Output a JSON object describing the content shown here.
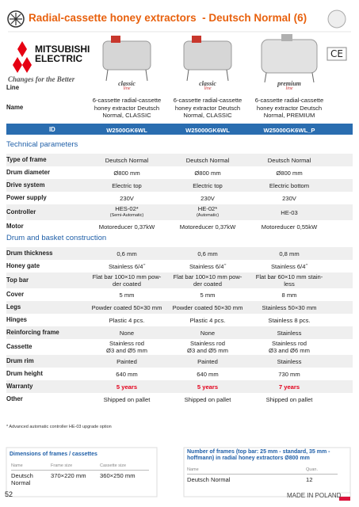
{
  "header": {
    "title": "Radial-cassette honey extractors  - Deutsch Normal (6)"
  },
  "logo": {
    "brand_lines": [
      "MITSUBISHI",
      "ELECTRIC"
    ],
    "slogan": "Changes for the Better"
  },
  "products": {
    "row_labels": {
      "line": "Line",
      "name": "Name"
    },
    "items": [
      {
        "line": [
          "classic",
          "line"
        ],
        "name": "6-cassette radial-cassette honey extractor Deutsch Normal, CLASSIC"
      },
      {
        "line": [
          "classic",
          "line"
        ],
        "name": "6-cassette radial-cassette honey extractor Deutsch Normal, CLASSIC"
      },
      {
        "line": [
          "premium",
          "line"
        ],
        "name": "6-cassette radial-cassette honey extractor Deutsch Normal, PREMIUM"
      }
    ]
  },
  "id_row": {
    "label": "ID",
    "values": [
      "W2500GK6WL",
      "W25000GK6WL",
      "W25000GK6WL_P"
    ]
  },
  "sections": [
    {
      "heading": "Technical parameters",
      "rows": [
        {
          "label": "Type of frame",
          "values": [
            "Deutsch Normal",
            "Deutsch Normal",
            "Deutsch Normal"
          ]
        },
        {
          "label": "Drum diameter",
          "values": [
            "Ø800 mm",
            "Ø800 mm",
            "Ø800 mm"
          ]
        },
        {
          "label": "Drive system",
          "values": [
            "Electric top",
            "Electric top",
            "Electric bottom"
          ]
        },
        {
          "label": "Power supply",
          "values": [
            "230V",
            "230V",
            "230V"
          ]
        },
        {
          "label": "Controller",
          "values": [
            [
              "HES-02*",
              "(Semi-Automatic)"
            ],
            [
              "HE-02*",
              "(Automatic)"
            ],
            "HE-03"
          ]
        },
        {
          "label": "Motor",
          "values": [
            "Motoreducer 0,37kW",
            "Motoreducer 0,37kW",
            "Motoreducer 0,55kW"
          ]
        }
      ]
    },
    {
      "heading": "Drum and basket construction",
      "rows": [
        {
          "label": "Drum thickness",
          "values": [
            "0,6 mm",
            "0,6 mm",
            "0,8 mm"
          ]
        },
        {
          "label": "Honey gate",
          "values": [
            "Stainless 6/4˝",
            "Stainless 6/4˝",
            "Stainless 6/4˝"
          ]
        },
        {
          "label": "Top bar",
          "values": [
            [
              "Flat bar 100×10 mm pow-",
              "der coated"
            ],
            [
              "Flat bar 100×10 mm pow-",
              "der coated"
            ],
            [
              "Flat bar 60×10 mm stain-",
              "less"
            ]
          ]
        },
        {
          "label": "Cover",
          "values": [
            "5 mm",
            "5 mm",
            "8 mm"
          ]
        },
        {
          "label": "Legs",
          "values": [
            "Powder coated  50×30 mm",
            "Powder coated  50×30 mm",
            "Stainless 50×30 mm"
          ]
        },
        {
          "label": "Hinges",
          "values": [
            "Plastic 4 pcs.",
            "Plastic 4 pcs.",
            "Stainless 8 pcs."
          ]
        },
        {
          "label": "Reinforcing frame",
          "values": [
            "None",
            "None",
            "Stainless"
          ]
        },
        {
          "label": "Cassette",
          "values": [
            [
              "Stainless rod",
              "Ø3 and Ø5 mm"
            ],
            [
              "Stainless rod",
              "Ø3 and Ø5 mm"
            ],
            [
              "Stainless rod",
              "Ø3 and Ø6 mm"
            ]
          ]
        },
        {
          "label": "Drum rim",
          "values": [
            "Painted",
            "Painted",
            "Stainless"
          ]
        },
        {
          "label": "Drum height",
          "values": [
            "640 mm",
            "640 mm",
            "730 mm"
          ]
        },
        {
          "label": "Warranty",
          "values": [
            "5 years",
            "5 years",
            "7 years"
          ],
          "value_color": "#e3001b"
        },
        {
          "label": "Other",
          "values": [
            "Shipped on pallet",
            "Shipped on pallet",
            "Shipped on pallet"
          ]
        }
      ]
    }
  ],
  "footnote": "* Advanced automatic controller HE-03 upgrade option",
  "dimensions": {
    "title": "Dimensions of frames / cassettes",
    "headers": [
      "Name",
      "Frame size",
      "Cassette size"
    ],
    "row": [
      "Deutsch Normal",
      "370×220 mm",
      "360×250 mm"
    ]
  },
  "frames": {
    "title": "Number of frames (top bar: 25 mm - standard, 35 mm - hoffmann) in radial honey extractors Ø800 mm",
    "headers": [
      "Name",
      "Quan."
    ],
    "row": [
      "Deutsch Normal",
      12
    ]
  },
  "footer": {
    "page": 52,
    "made_in": "MADE IN POLAND"
  }
}
